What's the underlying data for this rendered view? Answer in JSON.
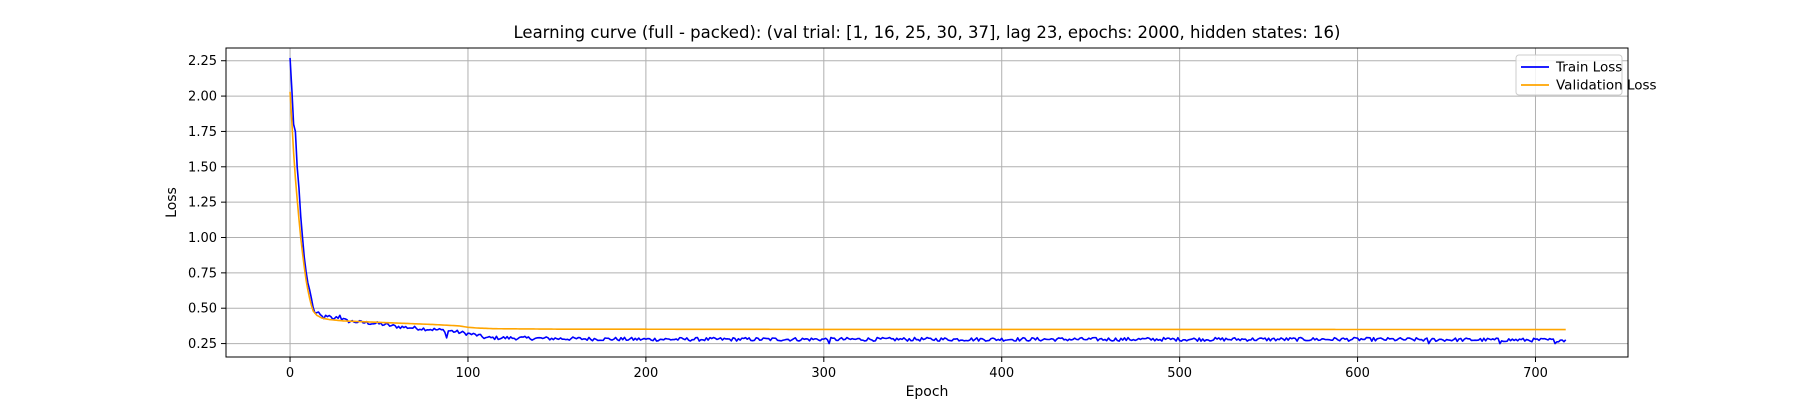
{
  "chart_data": {
    "type": "line",
    "title": "Learning curve (full - packed): (val trial: [1, 16, 25, 30, 37], lag 23, epochs: 2000, hidden states: 16)",
    "xlabel": "Epoch",
    "ylabel": "Loss",
    "xlim": [
      -36,
      752
    ],
    "ylim": [
      0.155,
      2.34
    ],
    "xticks": [
      0,
      100,
      200,
      300,
      400,
      500,
      600,
      700
    ],
    "yticks": [
      0.25,
      0.5,
      0.75,
      1.0,
      1.25,
      1.5,
      1.75,
      2.0,
      2.25
    ],
    "ytick_labels": [
      "0.25",
      "0.50",
      "0.75",
      "1.00",
      "1.25",
      "1.50",
      "1.75",
      "2.00",
      "2.25"
    ],
    "grid": true,
    "legend_position": "top-right",
    "series": [
      {
        "name": "Train Loss",
        "color": "#0000ff",
        "keypoints": [
          [
            0,
            2.27
          ],
          [
            1,
            2.05
          ],
          [
            2,
            1.8
          ],
          [
            3,
            1.75
          ],
          [
            4,
            1.5
          ],
          [
            5,
            1.35
          ],
          [
            6,
            1.15
          ],
          [
            7,
            1.0
          ],
          [
            8,
            0.86
          ],
          [
            9,
            0.76
          ],
          [
            10,
            0.68
          ],
          [
            11,
            0.63
          ],
          [
            12,
            0.57
          ],
          [
            13,
            0.5
          ],
          [
            14,
            0.47
          ],
          [
            16,
            0.46
          ],
          [
            18,
            0.44
          ],
          [
            20,
            0.43
          ],
          [
            22,
            0.44
          ],
          [
            25,
            0.42
          ],
          [
            28,
            0.43
          ],
          [
            32,
            0.41
          ],
          [
            40,
            0.4
          ],
          [
            50,
            0.39
          ],
          [
            60,
            0.37
          ],
          [
            70,
            0.36
          ],
          [
            80,
            0.35
          ],
          [
            90,
            0.34
          ],
          [
            100,
            0.32
          ],
          [
            105,
            0.31
          ],
          [
            110,
            0.29
          ],
          [
            120,
            0.29
          ],
          [
            150,
            0.285
          ],
          [
            200,
            0.28
          ],
          [
            300,
            0.28
          ],
          [
            400,
            0.28
          ],
          [
            500,
            0.28
          ],
          [
            600,
            0.28
          ],
          [
            700,
            0.275
          ],
          [
            717,
            0.275
          ]
        ],
        "noise_amplitude": 0.013,
        "spikes": [
          [
            20,
            0.45
          ],
          [
            26,
            0.44
          ],
          [
            28,
            0.45
          ],
          [
            88,
            0.29
          ],
          [
            303,
            0.25
          ],
          [
            640,
            0.25
          ],
          [
            680,
            0.25
          ],
          [
            711,
            0.25
          ]
        ]
      },
      {
        "name": "Validation Loss",
        "color": "#ffa500",
        "keypoints": [
          [
            0,
            2.03
          ],
          [
            1,
            1.82
          ],
          [
            2,
            1.6
          ],
          [
            3,
            1.42
          ],
          [
            4,
            1.27
          ],
          [
            5,
            1.13
          ],
          [
            6,
            1.0
          ],
          [
            7,
            0.89
          ],
          [
            8,
            0.79
          ],
          [
            9,
            0.7
          ],
          [
            10,
            0.63
          ],
          [
            11,
            0.57
          ],
          [
            12,
            0.52
          ],
          [
            13,
            0.48
          ],
          [
            15,
            0.45
          ],
          [
            18,
            0.43
          ],
          [
            22,
            0.42
          ],
          [
            30,
            0.41
          ],
          [
            40,
            0.405
          ],
          [
            60,
            0.395
          ],
          [
            80,
            0.385
          ],
          [
            95,
            0.375
          ],
          [
            100,
            0.365
          ],
          [
            105,
            0.36
          ],
          [
            115,
            0.355
          ],
          [
            150,
            0.352
          ],
          [
            300,
            0.35
          ],
          [
            500,
            0.35
          ],
          [
            700,
            0.349
          ],
          [
            717,
            0.349
          ]
        ]
      }
    ]
  }
}
